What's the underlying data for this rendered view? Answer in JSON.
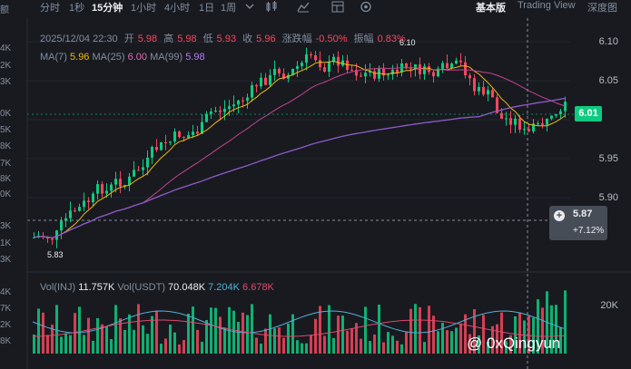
{
  "toolbar": {
    "cut_label": "额",
    "intervals": [
      "分时",
      "1秒",
      "15分钟",
      "1小时",
      "4小时",
      "1日",
      "1周"
    ],
    "active_interval": "15分钟",
    "icons": [
      "chevron-down-icon",
      "candle-settings-icon",
      "indicator-icon",
      "layout-icon",
      "settings-icon"
    ],
    "view_basic": "基本版",
    "view_tradingview": "Trading View",
    "view_depth": "深度图"
  },
  "ohlc": {
    "datetime": "2025/12/04 22:30",
    "open_label": "开",
    "open": "5.98",
    "high_label": "高",
    "high": "5.98",
    "low_label": "低",
    "low": "5.93",
    "close_label": "收",
    "close": "5.96",
    "change_label": "涨跌幅",
    "change": "-0.50%",
    "amp_label": "振幅",
    "amp": "0.83%"
  },
  "ma": {
    "ma7_label": "MA(7)",
    "ma7": "5.96",
    "ma25_label": "MA(25)",
    "ma25": "6.00",
    "ma99_label": "MA(99)",
    "ma99": "5.98"
  },
  "price_axis": [
    "6.10",
    "6.05",
    "6.00",
    "5.95",
    "5.90"
  ],
  "current_price": "6.01",
  "crosshair": {
    "value": "5.87",
    "percent": "+7.12%"
  },
  "high_marker": "6.10",
  "low_marker": "5.83",
  "left_cut_labels": [
    "4K",
    "2K",
    "3K",
    "0K",
    "5K",
    "8K",
    "7K",
    "8K",
    "0K",
    "3K",
    "1K",
    "3K",
    "4K",
    "7K",
    "2K",
    "8K"
  ],
  "volume": {
    "inj_label": "Vol(INJ)",
    "inj": "11.757K",
    "usdt_label": "Vol(USDT)",
    "usdt": "70.048K",
    "ma1": "7.204K",
    "ma2": "6.678K",
    "axis_label": "20K"
  },
  "colors": {
    "up": "#0ecb81",
    "down": "#f6465d",
    "ma7": "#f0b90b",
    "ma25": "#c2448f",
    "ma99": "#8e5bc8",
    "vol_ma1": "#4fb1d5",
    "vol_ma2": "#e04a6b"
  },
  "watermark": "@ 0xQingyun"
}
